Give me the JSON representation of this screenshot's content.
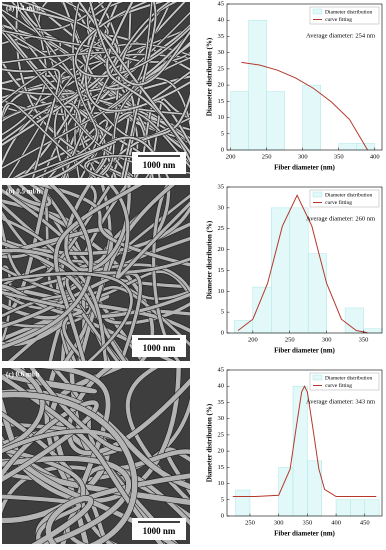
{
  "images": [
    {
      "label": "(a) 0.4 ml/h",
      "scale_bar": "1000 nm"
    },
    {
      "label": "(b) 0.5 ml/h",
      "scale_bar": "1000 nm"
    },
    {
      "label": "(c) 0.6 ml/h",
      "scale_bar": "1000 nm"
    }
  ],
  "chart_data": [
    {
      "type": "histogram",
      "xlabel": "Fiber diameter (nm)",
      "ylabel": "Diameter distribution (%)",
      "annotation": "Average diameter: 254 nm",
      "legend": "upper right",
      "xlim": [
        195,
        410
      ],
      "xticks": [
        200,
        250,
        300,
        350,
        400
      ],
      "ylim": [
        0,
        45
      ],
      "yticks": [
        0,
        5,
        10,
        15,
        20,
        25,
        30,
        35,
        40,
        45
      ],
      "bins": [
        200,
        225,
        250,
        275,
        300,
        325,
        350,
        375,
        400
      ],
      "series": [
        {
          "name": "Diameter distribution",
          "color": "#e3f9f9",
          "values": [
            18,
            40,
            18,
            0,
            20,
            0,
            2,
            2
          ]
        },
        {
          "name": "curve fitting",
          "color": "#b5382c",
          "x": [
            215,
            240,
            265,
            290,
            315,
            340,
            365,
            390
          ],
          "values": [
            27,
            26.2,
            24.6,
            22.2,
            19,
            14.8,
            9.4,
            0
          ]
        }
      ]
    },
    {
      "type": "histogram",
      "xlabel": "Fiber diameter (nm)",
      "ylabel": "Diameter distribution (%)",
      "annotation": "Average diameter: 260 nm",
      "legend": "upper right",
      "xlim": [
        165,
        375
      ],
      "xticks": [
        200,
        250,
        300,
        350
      ],
      "ylim": [
        0,
        35
      ],
      "yticks": [
        0,
        5,
        10,
        15,
        20,
        25,
        30,
        35
      ],
      "bins": [
        175,
        200,
        225,
        250,
        275,
        300,
        325,
        350,
        375
      ],
      "series": [
        {
          "name": "Diameter distribution",
          "color": "#e3f9f9",
          "values": [
            3,
            11,
            30,
            30,
            19,
            0,
            6,
            1
          ]
        },
        {
          "name": "curve fitting",
          "color": "#b5382c",
          "x": [
            180,
            200,
            220,
            240,
            260,
            280,
            300,
            320,
            340,
            355
          ],
          "values": [
            0.6,
            3.3,
            11.9,
            25.6,
            33,
            25.6,
            11.9,
            3.3,
            0.6,
            0.1
          ]
        }
      ]
    },
    {
      "type": "histogram",
      "xlabel": "Fiber diameter (nm)",
      "ylabel": "Diameter distribution (%)",
      "annotation": "Average diameter: 343 nm",
      "legend": "upper right",
      "xlim": [
        210,
        480
      ],
      "xticks": [
        250,
        300,
        350,
        400,
        450
      ],
      "ylim": [
        0,
        45
      ],
      "yticks": [
        0,
        5,
        10,
        15,
        20,
        25,
        30,
        35,
        40,
        45
      ],
      "bins": [
        225,
        250,
        275,
        300,
        325,
        350,
        375,
        400,
        425,
        450,
        475
      ],
      "series": [
        {
          "name": "Diameter distribution",
          "color": "#e3f9f9",
          "values": [
            8,
            0,
            0,
            15,
            40,
            17,
            0,
            5,
            5,
            5
          ]
        },
        {
          "name": "curve fitting",
          "color": "#b5382c",
          "x": [
            220,
            260,
            300,
            320,
            330,
            340,
            345,
            350,
            360,
            370,
            380,
            400,
            440,
            470
          ],
          "values": [
            6,
            6,
            6.4,
            14.5,
            26.6,
            38.2,
            40,
            38.2,
            26.6,
            14.5,
            8.2,
            6,
            6,
            6
          ]
        }
      ]
    }
  ]
}
